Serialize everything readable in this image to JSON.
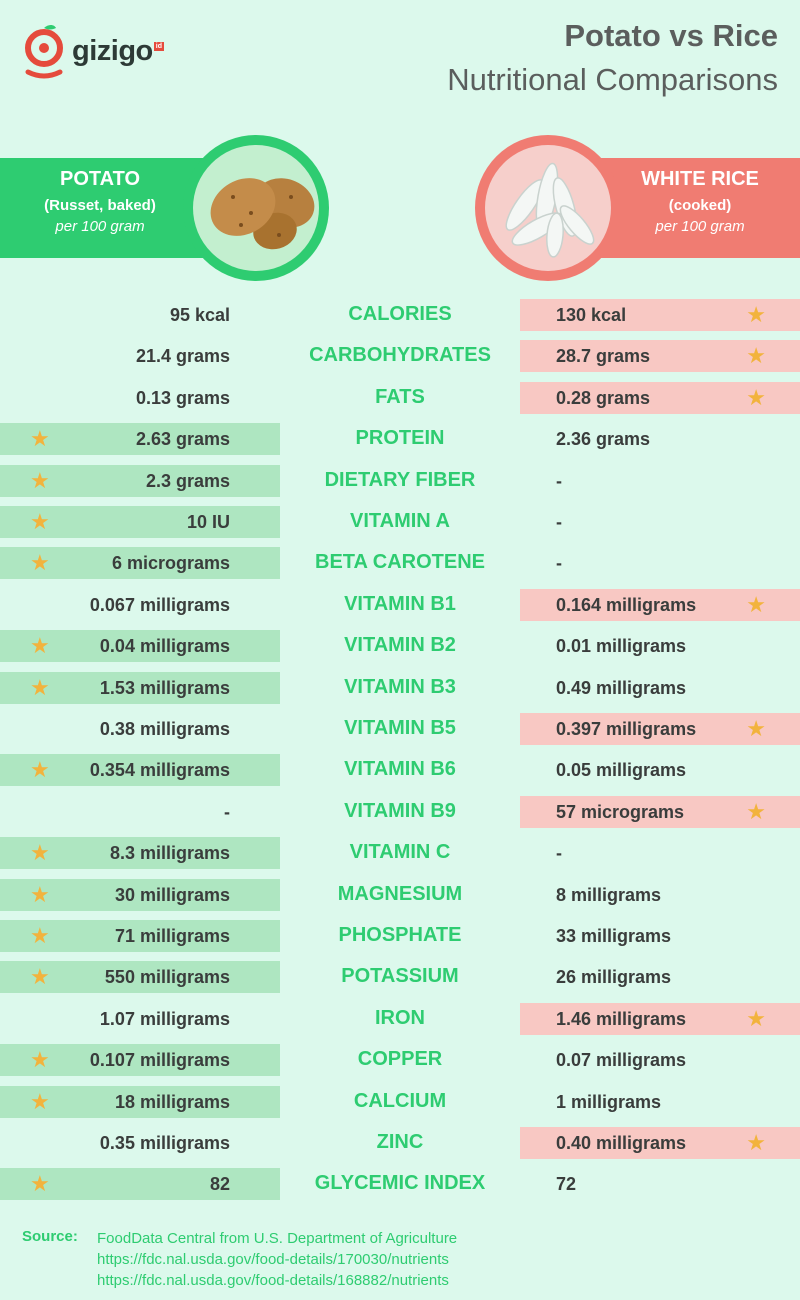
{
  "brand": {
    "name": "gizigo",
    "suffix": "id"
  },
  "title": {
    "line1": "Potato vs Rice",
    "line2": "Nutritional Comparisons"
  },
  "colors": {
    "green": "#2ecc71",
    "red": "#f07c72",
    "star": "#f2b33d",
    "background": "#dcf9ec"
  },
  "potato": {
    "name": "POTATO",
    "subtitle": "(Russet, baked)",
    "per": "per 100 gram"
  },
  "rice": {
    "name": "WHITE RICE",
    "subtitle": "(cooked)",
    "per": "per 100 gram"
  },
  "rows": [
    {
      "nutrient": "CALORIES",
      "potato": "95 kcal",
      "rice": "130 kcal",
      "winner": "rice"
    },
    {
      "nutrient": "CARBOHYDRATES",
      "potato": "21.4 grams",
      "rice": "28.7 grams",
      "winner": "rice"
    },
    {
      "nutrient": "FATS",
      "potato": "0.13 grams",
      "rice": "0.28 grams",
      "winner": "rice"
    },
    {
      "nutrient": "PROTEIN",
      "potato": "2.63 grams",
      "rice": "2.36 grams",
      "winner": "potato"
    },
    {
      "nutrient": "DIETARY FIBER",
      "potato": "2.3 grams",
      "rice": "-",
      "winner": "potato"
    },
    {
      "nutrient": "VITAMIN A",
      "potato": "10 IU",
      "rice": "-",
      "winner": "potato"
    },
    {
      "nutrient": "BETA CAROTENE",
      "potato": "6 micrograms",
      "rice": "-",
      "winner": "potato"
    },
    {
      "nutrient": "VITAMIN B1",
      "potato": "0.067 milligrams",
      "rice": "0.164 milligrams",
      "winner": "rice"
    },
    {
      "nutrient": "VITAMIN B2",
      "potato": "0.04 milligrams",
      "rice": "0.01 milligrams",
      "winner": "potato"
    },
    {
      "nutrient": "VITAMIN B3",
      "potato": "1.53 milligrams",
      "rice": "0.49 milligrams",
      "winner": "potato"
    },
    {
      "nutrient": "VITAMIN B5",
      "potato": "0.38 milligrams",
      "rice": "0.397 milligrams",
      "winner": "rice"
    },
    {
      "nutrient": "VITAMIN B6",
      "potato": "0.354 milligrams",
      "rice": "0.05 milligrams",
      "winner": "potato"
    },
    {
      "nutrient": "VITAMIN B9",
      "potato": "-",
      "rice": "57 micrograms",
      "winner": "rice"
    },
    {
      "nutrient": "VITAMIN C",
      "potato": "8.3 milligrams",
      "rice": "-",
      "winner": "potato"
    },
    {
      "nutrient": "MAGNESIUM",
      "potato": "30 milligrams",
      "rice": "8 milligrams",
      "winner": "potato"
    },
    {
      "nutrient": "PHOSPHATE",
      "potato": "71 milligrams",
      "rice": "33 milligrams",
      "winner": "potato"
    },
    {
      "nutrient": "POTASSIUM",
      "potato": "550 milligrams",
      "rice": "26 milligrams",
      "winner": "potato"
    },
    {
      "nutrient": "IRON",
      "potato": "1.07 milligrams",
      "rice": "1.46 milligrams",
      "winner": "rice"
    },
    {
      "nutrient": "COPPER",
      "potato": "0.107 milligrams",
      "rice": "0.07 milligrams",
      "winner": "potato"
    },
    {
      "nutrient": "CALCIUM",
      "potato": "18 milligrams",
      "rice": "1 milligrams",
      "winner": "potato"
    },
    {
      "nutrient": "ZINC",
      "potato": "0.35 milligrams",
      "rice": "0.40 milligrams",
      "winner": "rice"
    },
    {
      "nutrient": "GLYCEMIC INDEX",
      "potato": "82",
      "rice": "72",
      "winner": "potato"
    }
  ],
  "source": {
    "label": "Source:",
    "lines": [
      "FoodData Central from U.S. Department of Agriculture",
      "https://fdc.nal.usda.gov/food-details/170030/nutrients",
      "https://fdc.nal.usda.gov/food-details/168882/nutrients"
    ]
  }
}
